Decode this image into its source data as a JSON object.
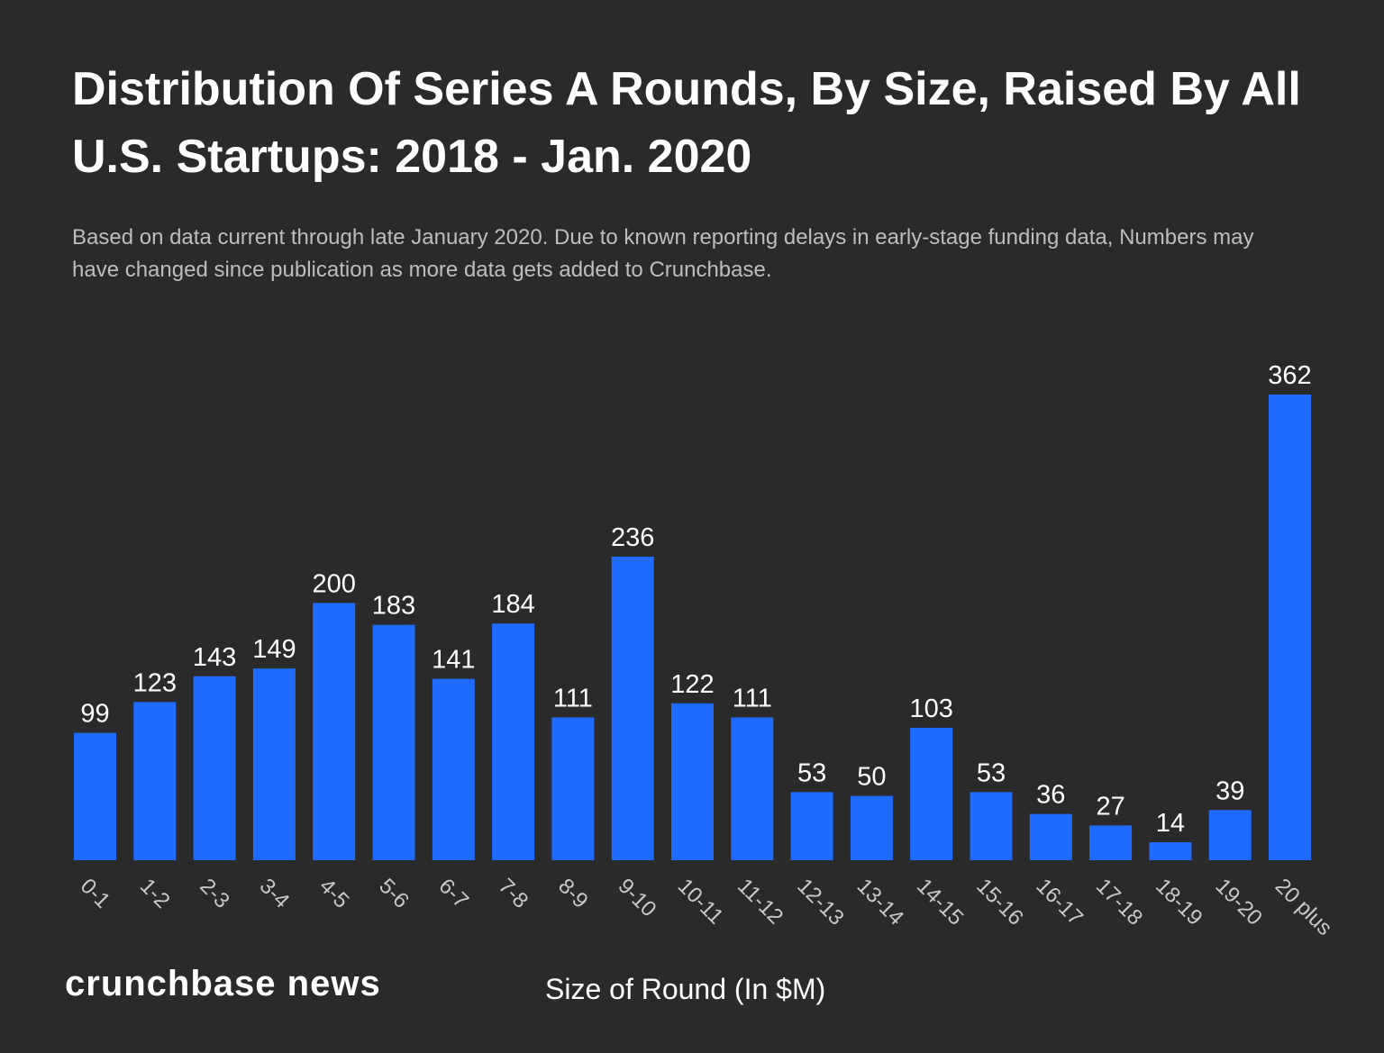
{
  "chart_data": {
    "type": "bar",
    "title": "Distribution Of Series A Rounds, By Size, Raised By All U.S. Startups: 2018 - Jan. 2020",
    "subtitle": "Based on data current through late January 2020. Due to known reporting delays in early-stage funding data, Numbers may have changed since publication as more data gets added to Crunchbase.",
    "xlabel": "Size of Round (In $M)",
    "ylabel": "",
    "categories": [
      "0-1",
      "1-2",
      "2-3",
      "3-4",
      "4-5",
      "5-6",
      "6-7",
      "7-8",
      "8-9",
      "9-10",
      "10-11",
      "11-12",
      "12-13",
      "13-14",
      "14-15",
      "15-16",
      "16-17",
      "17-18",
      "18-19",
      "19-20",
      "20 plus"
    ],
    "values": [
      99,
      123,
      143,
      149,
      200,
      183,
      141,
      184,
      111,
      236,
      122,
      111,
      53,
      50,
      103,
      53,
      36,
      27,
      14,
      39,
      362
    ],
    "ylim": [
      0,
      362
    ],
    "grid": false,
    "data_labels": true,
    "colors": {
      "bar": "#1f6bff",
      "background": "#2a2a2a",
      "text": "#ffffff",
      "tick": "#c8c8c8"
    }
  },
  "branding": {
    "logo": "crunchbase news"
  }
}
